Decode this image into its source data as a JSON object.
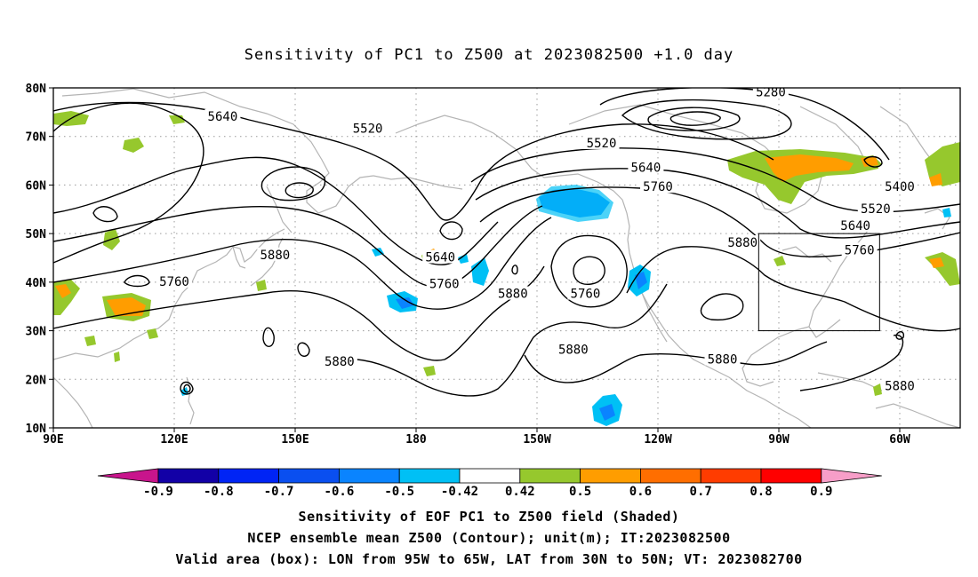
{
  "title": "Sensitivity of PC1 to Z500 at 2023082500 +1.0 day",
  "map": {
    "lat_labels": [
      "80N",
      "70N",
      "60N",
      "50N",
      "40N",
      "30N",
      "20N",
      "10N"
    ],
    "lon_labels": [
      "90E",
      "120E",
      "150E",
      "180",
      "150W",
      "120W",
      "90W",
      "60W"
    ],
    "lat_range": [
      10,
      80
    ],
    "lon_range_deg_east": [
      90,
      315
    ],
    "valid_box": {
      "lon": [
        "95W",
        "65W"
      ],
      "lat": [
        "30N",
        "50N"
      ]
    },
    "contour_labels": [
      {
        "text": "5640",
        "lon": 132,
        "lat": 74
      },
      {
        "text": "5520",
        "lon": 168,
        "lat": 71.5
      },
      {
        "text": "5280",
        "lon": 268,
        "lat": 79
      },
      {
        "text": "5520",
        "lon": 226,
        "lat": 68.5
      },
      {
        "text": "5640",
        "lon": 237,
        "lat": 63.5
      },
      {
        "text": "5760",
        "lon": 240,
        "lat": 59.5
      },
      {
        "text": "5400",
        "lon": 300,
        "lat": 59.5
      },
      {
        "text": "5520",
        "lon": 294,
        "lat": 55
      },
      {
        "text": "5640",
        "lon": 289,
        "lat": 51.5
      },
      {
        "text": "5760",
        "lon": 290,
        "lat": 46.5
      },
      {
        "text": "5880",
        "lon": 261,
        "lat": 48
      },
      {
        "text": "5880",
        "lon": 145,
        "lat": 45.5
      },
      {
        "text": "5760",
        "lon": 120,
        "lat": 40
      },
      {
        "text": "5640",
        "lon": 186,
        "lat": 45
      },
      {
        "text": "5760",
        "lon": 187,
        "lat": 39.5
      },
      {
        "text": "5880",
        "lon": 204,
        "lat": 37.5
      },
      {
        "text": "5760",
        "lon": 222,
        "lat": 37.5
      },
      {
        "text": "5880",
        "lon": 161,
        "lat": 23.5
      },
      {
        "text": "5880",
        "lon": 219,
        "lat": 26
      },
      {
        "text": "5880",
        "lon": 256,
        "lat": 24
      },
      {
        "text": "5880",
        "lon": 300,
        "lat": 18.5
      }
    ]
  },
  "colorbar": {
    "labels": [
      "-0.9",
      "-0.8",
      "-0.7",
      "-0.6",
      "-0.5",
      "-0.42",
      "0.42",
      "0.5",
      "0.6",
      "0.7",
      "0.8",
      "0.9"
    ],
    "colors": [
      "#1200a6",
      "#0024f5",
      "#0a4ff0",
      "#0a84ff",
      "#00c0f5",
      "#ffffff",
      "#96c82d",
      "#ff9d00",
      "#ff6e00",
      "#ff3c00",
      "#ff0000"
    ],
    "low_arrow_color": "#c8158c",
    "high_arrow_color": "#f79ec8"
  },
  "footer": {
    "line1": "Sensitivity of EOF PC1 to Z500 field (Shaded)",
    "line2": "NCEP ensemble mean Z500 (Contour); unit(m); IT:2023082500",
    "line3": "Valid area (box): LON from 95W to 65W, LAT from 30N to 50N; VT: 2023082700"
  }
}
